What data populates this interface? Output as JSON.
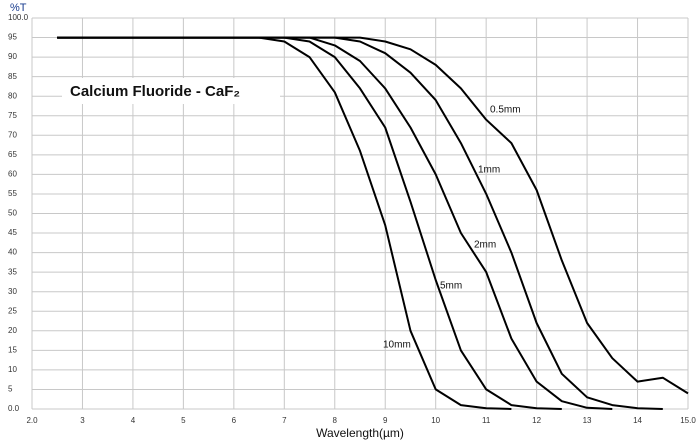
{
  "chart_data": {
    "type": "line",
    "title": "Calcium Fluoride - CaF₂",
    "y_label": "%T",
    "x_label": "Wavelength(µm)",
    "x": [
      2.5,
      3,
      4,
      5,
      6,
      6.5,
      7,
      7.5,
      8,
      8.5,
      9,
      9.5,
      10,
      10.5,
      11,
      11.5,
      12,
      12.5,
      13,
      13.5,
      14,
      14.5,
      15
    ],
    "series": [
      {
        "name": "0.5mm",
        "color": "#000000",
        "values": [
          95,
          95,
          95,
          95,
          95,
          95,
          95,
          95,
          95,
          95,
          94,
          92,
          88,
          82,
          74,
          68,
          56,
          38,
          22,
          13,
          7,
          8,
          4
        ]
      },
      {
        "name": "1mm",
        "color": "#000000",
        "values": [
          95,
          95,
          95,
          95,
          95,
          95,
          95,
          95,
          95,
          94,
          91,
          86,
          79,
          68,
          55,
          40,
          22,
          9,
          3,
          1,
          0.2,
          0,
          null
        ]
      },
      {
        "name": "2mm",
        "color": "#000000",
        "values": [
          95,
          95,
          95,
          95,
          95,
          95,
          95,
          95,
          93,
          89,
          82,
          72,
          60,
          45,
          35,
          18,
          7,
          2,
          0.3,
          0,
          null,
          null,
          null
        ]
      },
      {
        "name": "5mm",
        "color": "#000000",
        "values": [
          95,
          95,
          95,
          95,
          95,
          95,
          95,
          94,
          90,
          82,
          72,
          53,
          33,
          15,
          5,
          1,
          0.2,
          0,
          null,
          null,
          null,
          null,
          null
        ]
      },
      {
        "name": "10mm",
        "color": "#000000",
        "values": [
          95,
          95,
          95,
          95,
          95,
          95,
          94,
          90,
          81,
          66,
          47,
          20,
          5,
          1,
          0.2,
          0,
          null,
          null,
          null,
          null,
          null,
          null,
          null
        ]
      }
    ],
    "xlim": [
      2,
      15
    ],
    "xticks": [
      {
        "value": 2,
        "label": "2.0"
      },
      3,
      4,
      5,
      6,
      7,
      8,
      9,
      10,
      11,
      12,
      13,
      14,
      {
        "value": 15,
        "label": "15.0"
      }
    ],
    "ylim": [
      0,
      100
    ],
    "yticks": [
      {
        "value": 0,
        "label": "0.0"
      },
      5,
      10,
      15,
      20,
      25,
      30,
      35,
      40,
      45,
      50,
      55,
      60,
      65,
      70,
      75,
      80,
      85,
      90,
      95,
      {
        "value": 100,
        "label": "100.0"
      }
    ],
    "grid": true
  }
}
